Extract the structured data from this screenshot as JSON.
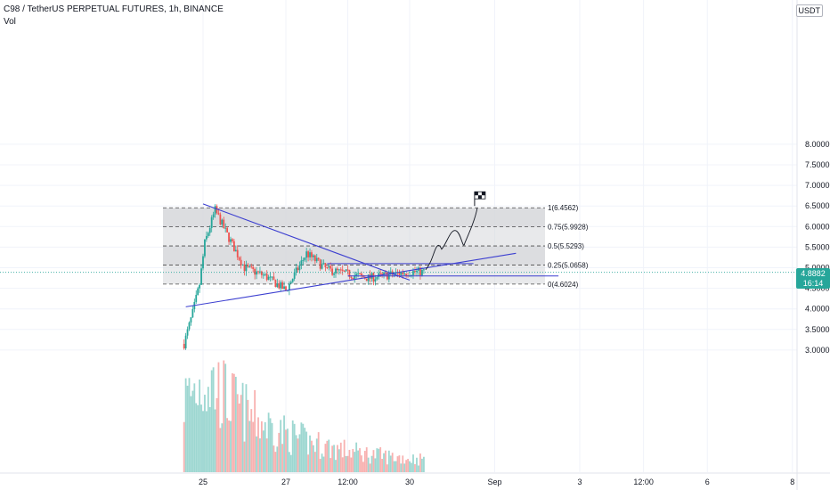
{
  "header": {
    "symbol_line": "C98 / TetherUS PERPETUAL FUTURES, 1h, BINANCE",
    "indicator": "Vol"
  },
  "price_axis": {
    "currency": "USDT",
    "ticks": [
      "8.0000",
      "7.5000",
      "7.0000",
      "6.5000",
      "6.0000",
      "5.5000",
      "5.0000",
      "4.5000",
      "4.0000",
      "3.5000",
      "3.0000"
    ],
    "current_price": "4.8882",
    "countdown": "16:14"
  },
  "time_axis": {
    "ticks": [
      "25",
      "27",
      "12:00",
      "30",
      "Sep",
      "3",
      "12:00",
      "6",
      "8"
    ]
  },
  "fib_levels": [
    {
      "ratio": "1",
      "label": "1(6.4562)",
      "price": 6.4562
    },
    {
      "ratio": "0.75",
      "label": "0.75(5.9928)",
      "price": 5.9928
    },
    {
      "ratio": "0.5",
      "label": "0.5(5.5293)",
      "price": 5.5293
    },
    {
      "ratio": "0.25",
      "label": "0.25(5.0658)",
      "price": 5.0658
    },
    {
      "ratio": "0",
      "label": "0(4.6024)",
      "price": 4.6024
    }
  ],
  "colors": {
    "up": "#26a69a",
    "down": "#ef5350",
    "trendline": "#3c3fd0",
    "fib_fill": "#d6d7da",
    "grid": "#f0f3fa"
  },
  "chart_data": {
    "type": "candlestick",
    "interval": "1h",
    "ylim": [
      2.5,
      8.2
    ],
    "price_path": [
      [
        "Aug 24 13:00",
        3.15
      ],
      [
        "Aug 24 18:00",
        3.9
      ],
      [
        "Aug 24 22:00",
        4.6
      ],
      [
        "Aug 25 01:00",
        5.6
      ],
      [
        "Aug 25 07:00",
        6.4
      ],
      [
        "Aug 25 14:00",
        5.8
      ],
      [
        "Aug 26 00:00",
        5.0
      ],
      [
        "Aug 26 12:00",
        4.8
      ],
      [
        "Aug 27 00:00",
        4.45
      ],
      [
        "Aug 27 12:00",
        5.35
      ],
      [
        "Aug 28 00:00",
        4.95
      ],
      [
        "Aug 29 00:00",
        4.75
      ],
      [
        "Aug 30 00:00",
        4.9
      ],
      [
        "Aug 30 08:00",
        4.9
      ]
    ],
    "volume_peak_day": "Aug 25",
    "annotations": {
      "descending_trendline": [
        [
          "Aug 25 00:00",
          6.55
        ],
        [
          "Aug 30 00:00",
          4.7
        ]
      ],
      "ascending_trendline": [
        [
          "Aug 24 14:00",
          4.05
        ],
        [
          "Sep 1 12:00",
          5.35
        ]
      ],
      "resistance": {
        "price": 5.1
      },
      "support": {
        "price": 4.8
      },
      "projection_path_to": 6.4562,
      "target_flag": "finish-flag-icon"
    }
  }
}
